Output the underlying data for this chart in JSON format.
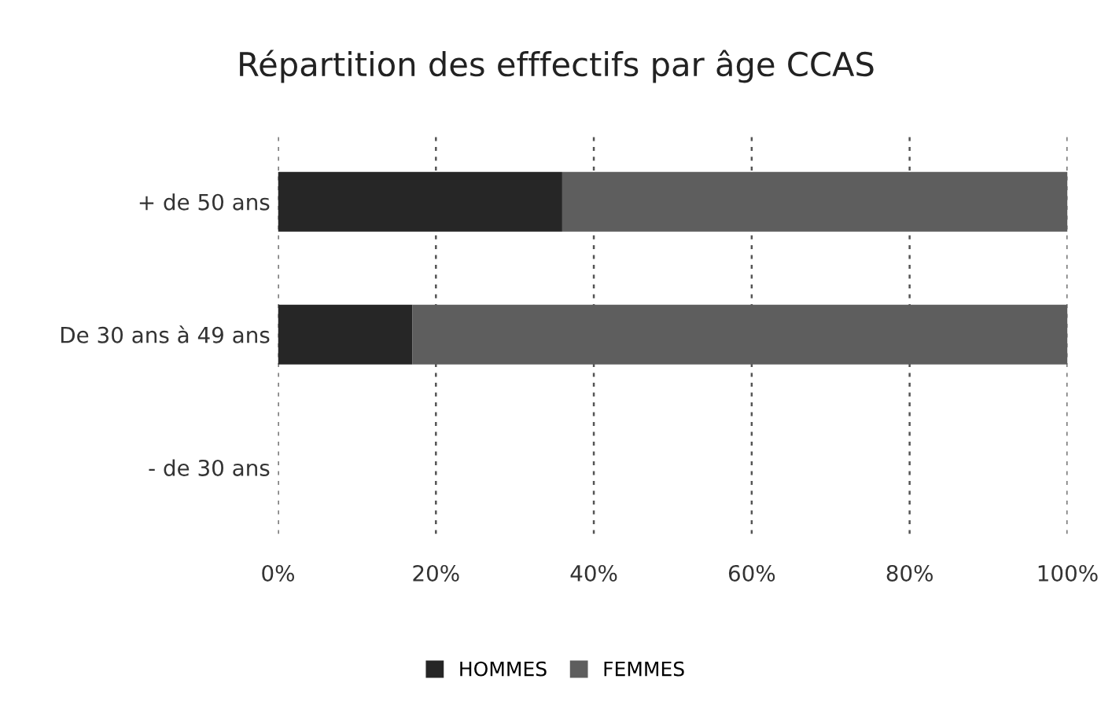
{
  "chart_data": {
    "type": "bar",
    "orientation": "horizontal",
    "stacked": true,
    "title": "Répartition des efffectifs par âge CCAS",
    "categories": [
      "+ de 50 ans",
      "De 30 ans à 49 ans",
      "- de 30 ans"
    ],
    "series": [
      {
        "name": "HOMMES",
        "color": "#262626",
        "values": [
          36,
          17,
          null
        ]
      },
      {
        "name": "FEMMES",
        "color": "#5e5e5e",
        "values": [
          64,
          83,
          null
        ]
      }
    ],
    "xlim": [
      0,
      100
    ],
    "xticks": [
      {
        "value": 0,
        "label": "0%"
      },
      {
        "value": 20,
        "label": "20%"
      },
      {
        "value": 40,
        "label": "40%"
      },
      {
        "value": 60,
        "label": "60%"
      },
      {
        "value": 80,
        "label": "80%"
      },
      {
        "value": 100,
        "label": "100%"
      }
    ],
    "grid": "x",
    "legend": "bottom"
  }
}
